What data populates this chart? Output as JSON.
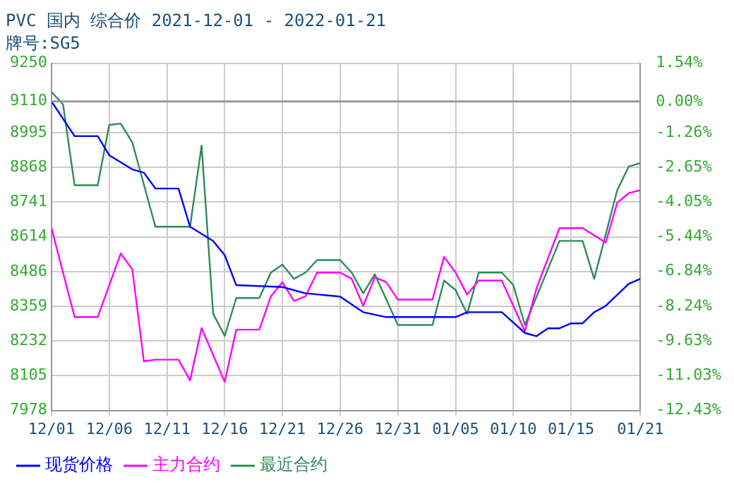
{
  "chart_data": {
    "type": "line",
    "title": "PVC 国内 综合价 2021-12-01 - 2022-01-21",
    "subtitle": "牌号:SG5",
    "xlim": [
      "2021-12-01",
      "2022-01-21"
    ],
    "xticks": [
      {
        "value": "2021-12-01",
        "label": "12/01"
      },
      {
        "value": "2021-12-06",
        "label": "12/06"
      },
      {
        "value": "2021-12-11",
        "label": "12/11"
      },
      {
        "value": "2021-12-16",
        "label": "12/16"
      },
      {
        "value": "2021-12-21",
        "label": "12/21"
      },
      {
        "value": "2021-12-26",
        "label": "12/26"
      },
      {
        "value": "2021-12-31",
        "label": "12/31"
      },
      {
        "value": "2022-01-05",
        "label": "01/05"
      },
      {
        "value": "2022-01-10",
        "label": "01/10"
      },
      {
        "value": "2022-01-15",
        "label": "01/15"
      },
      {
        "value": "2022-01-21",
        "label": "01/21"
      }
    ],
    "ylim": [
      7978,
      9250
    ],
    "yticks": [
      7978,
      8105,
      8232,
      8359,
      8486,
      8614,
      8741,
      8868,
      8995,
      9110,
      9250
    ],
    "y2lim": [
      -12.43,
      1.54
    ],
    "y2ticks": [
      {
        "value": -12.43,
        "label": "-12.43%"
      },
      {
        "value": -11.03,
        "label": "-11.03%"
      },
      {
        "value": -9.63,
        "label": "-9.63%"
      },
      {
        "value": -8.24,
        "label": "-8.24%"
      },
      {
        "value": -6.84,
        "label": "-6.84%"
      },
      {
        "value": -5.44,
        "label": "-5.44%"
      },
      {
        "value": -4.05,
        "label": "-4.05%"
      },
      {
        "value": -2.65,
        "label": "-2.65%"
      },
      {
        "value": -1.26,
        "label": "-1.26%"
      },
      {
        "value": 0,
        "label": "0.00%"
      },
      {
        "value": 1.54,
        "label": "1.54%"
      }
    ],
    "grid": true,
    "legend": "bottom",
    "marker": "none",
    "line_style": "solid",
    "ref_lines": [
      {
        "axis": "y",
        "value": 9110,
        "color": "#999999"
      }
    ],
    "series": [
      {
        "name": "现货价格",
        "color": "#0000ff",
        "x": [
          "2021-12-01",
          "2021-12-03",
          "2021-12-05",
          "2021-12-06",
          "2021-12-08",
          "2021-12-09",
          "2021-12-10",
          "2021-12-12",
          "2021-12-13",
          "2021-12-15",
          "2021-12-16",
          "2021-12-17",
          "2021-12-21",
          "2021-12-23",
          "2021-12-26",
          "2021-12-28",
          "2021-12-30",
          "2022-01-05",
          "2022-01-06",
          "2022-01-09",
          "2022-01-11",
          "2022-01-12",
          "2022-01-13",
          "2022-01-14",
          "2022-01-15",
          "2022-01-16",
          "2022-01-17",
          "2022-01-18",
          "2022-01-20",
          "2022-01-21"
        ],
        "values": [
          9110,
          8983,
          8983,
          8913,
          8861,
          8849,
          8791,
          8791,
          8651,
          8599,
          8547,
          8437,
          8430,
          8407,
          8395,
          8338,
          8320,
          8320,
          8338,
          8338,
          8262,
          8250,
          8279,
          8279,
          8297,
          8297,
          8338,
          8361,
          8442,
          8460
        ]
      },
      {
        "name": "主力合约",
        "color": "#ff00ff",
        "x": [
          "2021-12-01",
          "2021-12-03",
          "2021-12-05",
          "2021-12-07",
          "2021-12-08",
          "2021-12-09",
          "2021-12-10",
          "2021-12-12",
          "2021-12-13",
          "2021-12-14",
          "2021-12-16",
          "2021-12-17",
          "2021-12-19",
          "2021-12-20",
          "2021-12-21",
          "2021-12-22",
          "2021-12-23",
          "2021-12-24",
          "2021-12-26",
          "2021-12-27",
          "2021-12-28",
          "2021-12-29",
          "2021-12-30",
          "2021-12-31",
          "2022-01-03",
          "2022-01-04",
          "2022-01-05",
          "2022-01-06",
          "2022-01-07",
          "2022-01-09",
          "2022-01-11",
          "2022-01-12",
          "2022-01-14",
          "2022-01-16",
          "2022-01-18",
          "2022-01-19",
          "2022-01-20",
          "2022-01-21"
        ],
        "values": [
          8646,
          8320,
          8320,
          8553,
          8495,
          8158,
          8164,
          8164,
          8088,
          8280,
          8082,
          8274,
          8274,
          8396,
          8448,
          8379,
          8396,
          8483,
          8483,
          8460,
          8361,
          8466,
          8448,
          8384,
          8384,
          8541,
          8483,
          8402,
          8454,
          8454,
          8268,
          8425,
          8646,
          8646,
          8593,
          8739,
          8774,
          8785
        ]
      },
      {
        "name": "最近合约",
        "color": "#2e8b57",
        "x": [
          "2021-12-01",
          "2021-12-02",
          "2021-12-03",
          "2021-12-05",
          "2021-12-06",
          "2021-12-07",
          "2021-12-08",
          "2021-12-10",
          "2021-12-13",
          "2021-12-14",
          "2021-12-15",
          "2021-12-16",
          "2021-12-17",
          "2021-12-19",
          "2021-12-20",
          "2021-12-21",
          "2021-12-22",
          "2021-12-23",
          "2021-12-24",
          "2021-12-26",
          "2021-12-27",
          "2021-12-28",
          "2021-12-29",
          "2021-12-31",
          "2022-01-03",
          "2022-01-04",
          "2022-01-05",
          "2022-01-06",
          "2022-01-07",
          "2022-01-09",
          "2022-01-10",
          "2022-01-11",
          "2022-01-14",
          "2022-01-16",
          "2022-01-17",
          "2022-01-19",
          "2022-01-20",
          "2022-01-21"
        ],
        "values": [
          9145,
          9099,
          8803,
          8803,
          9024,
          9029,
          8960,
          8651,
          8651,
          8948,
          8332,
          8251,
          8390,
          8390,
          8483,
          8512,
          8460,
          8483,
          8529,
          8529,
          8483,
          8407,
          8477,
          8291,
          8291,
          8454,
          8419,
          8332,
          8483,
          8483,
          8437,
          8291,
          8599,
          8599,
          8460,
          8785,
          8872,
          8884
        ]
      }
    ]
  }
}
